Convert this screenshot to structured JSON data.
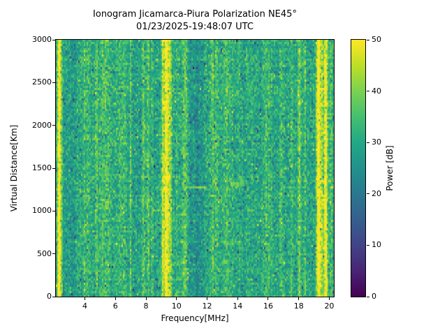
{
  "figure": {
    "title_line1": "Ionogram Jicamarca-Piura Polarization NE45°",
    "title_line2": "01/23/2025-19:48:07 UTC",
    "background": "#ffffff"
  },
  "chart_data": {
    "type": "heatmap",
    "title": "Ionogram Jicamarca-Piura Polarization NE45°",
    "subtitle": "01/23/2025-19:48:07 UTC",
    "xlabel": "Frequency[MHz]",
    "ylabel": "Virtual Distance[Km]",
    "colorbar_label": "Power [dB]",
    "x_range_mhz": [
      2.1,
      20.3
    ],
    "y_range_km": [
      0,
      3000
    ],
    "color_range_db": [
      0,
      50
    ],
    "x_ticks": [
      4,
      6,
      8,
      10,
      12,
      14,
      16,
      18,
      20
    ],
    "y_ticks": [
      0,
      500,
      1000,
      1500,
      2000,
      2500,
      3000
    ],
    "colorbar_ticks": [
      0,
      10,
      20,
      30,
      40,
      50
    ],
    "colormap": "viridis",
    "colormap_stops": [
      {
        "t": 0.0,
        "color": "#440154"
      },
      {
        "t": 0.1,
        "color": "#482475"
      },
      {
        "t": 0.2,
        "color": "#414487"
      },
      {
        "t": 0.3,
        "color": "#355f8d"
      },
      {
        "t": 0.4,
        "color": "#2a788e"
      },
      {
        "t": 0.5,
        "color": "#21918c"
      },
      {
        "t": 0.6,
        "color": "#22a884"
      },
      {
        "t": 0.7,
        "color": "#44bf70"
      },
      {
        "t": 0.8,
        "color": "#7ad151"
      },
      {
        "t": 0.9,
        "color": "#bddf26"
      },
      {
        "t": 1.0,
        "color": "#fde725"
      }
    ],
    "background_mean_db": 29.5,
    "background_std_db": 5,
    "interference_lines": [
      {
        "freq_mhz": 2.25,
        "boost_db": 12,
        "sigma_mhz": 0.05,
        "solid": false
      },
      {
        "freq_mhz": 2.34,
        "boost_db": 26,
        "sigma_mhz": 0.07,
        "solid": true
      },
      {
        "freq_mhz": 2.5,
        "boost_db": 6,
        "sigma_mhz": 0.05,
        "solid": false
      },
      {
        "freq_mhz": 3.95,
        "boost_db": 11,
        "sigma_mhz": 0.05,
        "solid": false
      },
      {
        "freq_mhz": 4.2,
        "boost_db": 7,
        "sigma_mhz": 0.1,
        "solid": false
      },
      {
        "freq_mhz": 4.75,
        "boost_db": 10,
        "sigma_mhz": 0.05,
        "solid": false
      },
      {
        "freq_mhz": 5.3,
        "boost_db": 5,
        "sigma_mhz": 0.35,
        "solid": false
      },
      {
        "freq_mhz": 6.4,
        "boost_db": 4,
        "sigma_mhz": 0.3,
        "solid": false
      },
      {
        "freq_mhz": 7.0,
        "boost_db": 10,
        "sigma_mhz": 0.05,
        "solid": false
      },
      {
        "freq_mhz": 7.85,
        "boost_db": 11,
        "sigma_mhz": 0.05,
        "solid": false
      },
      {
        "freq_mhz": 8.15,
        "boost_db": 13,
        "sigma_mhz": 0.05,
        "solid": false
      },
      {
        "freq_mhz": 8.4,
        "boost_db": 7,
        "sigma_mhz": 0.05,
        "solid": false
      },
      {
        "freq_mhz": 9.1,
        "boost_db": 15,
        "sigma_mhz": 0.06,
        "solid": false
      },
      {
        "freq_mhz": 9.35,
        "boost_db": 24,
        "sigma_mhz": 0.13,
        "solid": true
      },
      {
        "freq_mhz": 9.6,
        "boost_db": 14,
        "sigma_mhz": 0.05,
        "solid": false
      },
      {
        "freq_mhz": 10.0,
        "boost_db": 5,
        "sigma_mhz": 0.05,
        "solid": false
      },
      {
        "freq_mhz": 10.55,
        "boost_db": 8,
        "sigma_mhz": 0.2,
        "solid": false
      },
      {
        "freq_mhz": 12.35,
        "boost_db": 9,
        "sigma_mhz": 0.09,
        "solid": false
      },
      {
        "freq_mhz": 12.6,
        "boost_db": 8,
        "sigma_mhz": 0.08,
        "solid": false
      },
      {
        "freq_mhz": 13.3,
        "boost_db": 4,
        "sigma_mhz": 0.25,
        "solid": false
      },
      {
        "freq_mhz": 14.9,
        "boost_db": 4,
        "sigma_mhz": 0.2,
        "solid": false
      },
      {
        "freq_mhz": 15.9,
        "boost_db": 5,
        "sigma_mhz": 0.25,
        "solid": false
      },
      {
        "freq_mhz": 16.85,
        "boost_db": 8,
        "sigma_mhz": 0.05,
        "solid": false
      },
      {
        "freq_mhz": 17.55,
        "boost_db": 7,
        "sigma_mhz": 0.05,
        "solid": false
      },
      {
        "freq_mhz": 18.05,
        "boost_db": 10,
        "sigma_mhz": 0.09,
        "solid": false
      },
      {
        "freq_mhz": 18.4,
        "boost_db": 9,
        "sigma_mhz": 0.07,
        "solid": false
      },
      {
        "freq_mhz": 19.3,
        "boost_db": 26,
        "sigma_mhz": 0.1,
        "solid": true
      },
      {
        "freq_mhz": 19.55,
        "boost_db": 13,
        "sigma_mhz": 0.1,
        "solid": false
      },
      {
        "freq_mhz": 19.78,
        "boost_db": 26,
        "sigma_mhz": 0.08,
        "solid": true
      },
      {
        "freq_mhz": 20.15,
        "boost_db": 7,
        "sigma_mhz": 0.08,
        "solid": false
      }
    ],
    "broad_bands": [
      {
        "f0": 2.6,
        "f1": 3.4,
        "delta_db": -2.0
      },
      {
        "f0": 5.0,
        "f1": 5.8,
        "delta_db": 1.5
      },
      {
        "f0": 10.7,
        "f1": 11.8,
        "delta_db": -3.5
      },
      {
        "f0": 13.0,
        "f1": 14.3,
        "delta_db": 1.0
      },
      {
        "f0": 14.4,
        "f1": 15.6,
        "delta_db": -1.0
      }
    ],
    "echo_trace_segments": [
      {
        "f0": 10.45,
        "f1": 11.95,
        "distance_km": 1280,
        "power_db": 42
      },
      {
        "f0": 13.5,
        "f1": 14.45,
        "distance_km": 1315,
        "power_db": 40
      }
    ]
  }
}
